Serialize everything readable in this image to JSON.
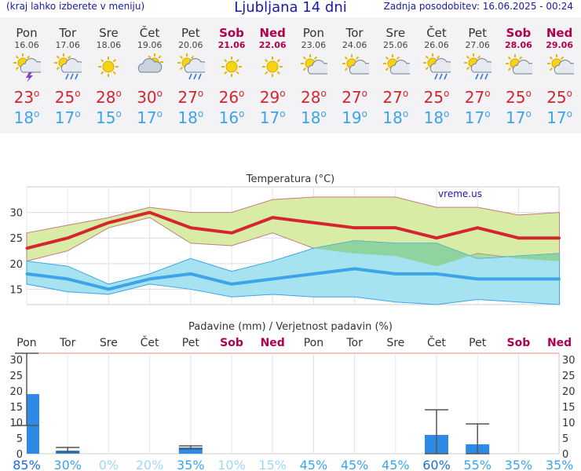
{
  "header": {
    "menu_hint": "(kraj lahko izberete v meniju)",
    "title": "Ljubljana 14 dni",
    "updated": "Zadnja posodobitev: 16.06.2025 - 00:24"
  },
  "days": [
    {
      "name": "Pon",
      "date": "16.06",
      "max": "23",
      "min": "18",
      "icon": "storm-icon",
      "weekend": false
    },
    {
      "name": "Tor",
      "date": "17.06",
      "max": "25",
      "min": "17",
      "icon": "sun-cloud-rain-icon",
      "weekend": false
    },
    {
      "name": "Sre",
      "date": "18.06",
      "max": "28",
      "min": "15",
      "icon": "sun-icon",
      "weekend": false
    },
    {
      "name": "Čet",
      "date": "19.06",
      "max": "30",
      "min": "17",
      "icon": "cloud-sun-icon",
      "weekend": false
    },
    {
      "name": "Pet",
      "date": "20.06",
      "max": "27",
      "min": "18",
      "icon": "sun-cloud-rain-icon",
      "weekend": false
    },
    {
      "name": "Sob",
      "date": "21.06",
      "max": "26",
      "min": "16",
      "icon": "sun-icon",
      "weekend": true
    },
    {
      "name": "Ned",
      "date": "22.06",
      "max": "29",
      "min": "17",
      "icon": "sun-icon",
      "weekend": true
    },
    {
      "name": "Pon",
      "date": "23.06",
      "max": "28",
      "min": "18",
      "icon": "sun-cloud-icon",
      "weekend": false
    },
    {
      "name": "Tor",
      "date": "24.06",
      "max": "27",
      "min": "19",
      "icon": "sun-cloud-icon",
      "weekend": false
    },
    {
      "name": "Sre",
      "date": "25.06",
      "max": "27",
      "min": "18",
      "icon": "sun-cloud-icon",
      "weekend": false
    },
    {
      "name": "Čet",
      "date": "26.06",
      "max": "25",
      "min": "18",
      "icon": "sun-cloud-rain-icon",
      "weekend": false
    },
    {
      "name": "Pet",
      "date": "27.06",
      "max": "27",
      "min": "17",
      "icon": "sun-cloud-rain-icon",
      "weekend": false
    },
    {
      "name": "Sob",
      "date": "28.06",
      "max": "25",
      "min": "17",
      "icon": "sun-cloud-icon",
      "weekend": true
    },
    {
      "name": "Ned",
      "date": "29.06",
      "max": "25",
      "min": "17",
      "icon": "sun-cloud-icon",
      "weekend": true
    }
  ],
  "colors": {
    "max_temp": "#d42530",
    "min_temp": "#3ca4e8",
    "weekend": "#b0004e",
    "max_band": "#d7eba0",
    "min_band": "#a2e0ef",
    "overlap": "#88cf86",
    "precip_bar": "#2f8ae6",
    "prob_high": "#1b6ed6",
    "prob_low": "#9fd7f5"
  },
  "chart_data": [
    {
      "type": "line",
      "title": "Temperatura (°C)",
      "watermark": "vreme.us",
      "ylim": [
        12,
        35
      ],
      "yticks": [
        15,
        20,
        25,
        30
      ],
      "grid": true,
      "series": [
        {
          "name": "max",
          "values": [
            23,
            25,
            28,
            30,
            27,
            26,
            29,
            28,
            27,
            27,
            25,
            27,
            25,
            25
          ],
          "upper": [
            26,
            27.5,
            29,
            31,
            30,
            30,
            32.5,
            33,
            33,
            33,
            31,
            31,
            29.5,
            30
          ],
          "lower": [
            20.5,
            22.5,
            27,
            29,
            24,
            23.5,
            26,
            23,
            22,
            21.5,
            19.5,
            22,
            21,
            20.5
          ]
        },
        {
          "name": "min",
          "values": [
            18,
            17,
            15,
            17,
            18,
            16,
            17,
            18,
            19,
            18,
            18,
            17,
            17,
            17
          ],
          "upper": [
            20.5,
            19.5,
            16,
            18,
            21,
            18.5,
            20.5,
            23,
            24.5,
            24,
            24,
            21,
            21.5,
            22
          ],
          "lower": [
            16,
            14.5,
            14,
            16,
            15,
            13.5,
            14,
            13.5,
            13.5,
            12.5,
            12,
            13,
            12.5,
            12
          ]
        }
      ]
    },
    {
      "type": "bar",
      "title": "Padavine (mm) / Verjetnost padavin (%)",
      "categories": [
        "Pon",
        "Tor",
        "Sre",
        "Čet",
        "Pet",
        "Sob",
        "Ned",
        "Pon",
        "Tor",
        "Sre",
        "Čet",
        "Pet",
        "Sob",
        "Ned"
      ],
      "ylim": [
        0,
        32
      ],
      "yticks": [
        0,
        5,
        10,
        15,
        20,
        25,
        30
      ],
      "precip_mm": [
        19,
        1,
        0,
        0,
        2,
        0,
        0,
        0,
        0,
        0,
        6,
        3,
        0,
        0
      ],
      "precip_range": [
        [
          9,
          32
        ],
        [
          0.5,
          2
        ],
        null,
        null,
        [
          1.5,
          2.5
        ],
        null,
        null,
        null,
        null,
        null,
        [
          0,
          14
        ],
        [
          0,
          9.5
        ],
        null,
        null
      ],
      "probability": [
        "85%",
        "30%",
        "0%",
        "20%",
        "35%",
        "10%",
        "15%",
        "45%",
        "45%",
        "45%",
        "60%",
        "55%",
        "35%",
        "35%"
      ]
    }
  ]
}
